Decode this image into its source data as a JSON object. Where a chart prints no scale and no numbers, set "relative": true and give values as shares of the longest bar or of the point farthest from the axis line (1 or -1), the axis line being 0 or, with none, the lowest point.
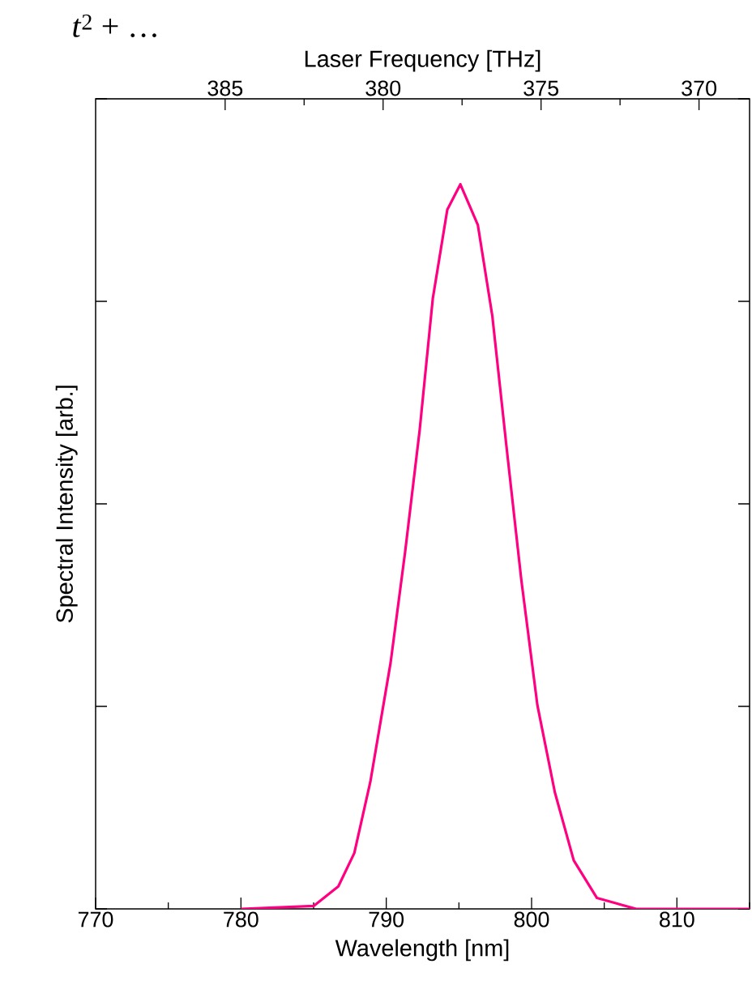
{
  "chart_data": {
    "type": "line",
    "xlabel": "Wavelength [nm]",
    "ylabel": "Spectral Intensity [arb.]",
    "x2label": "Laser Frequency [THz]",
    "relative": true,
    "color": "#ff0080",
    "x": [
      780.0,
      785.0,
      786.7,
      787.8,
      788.9,
      790.3,
      791.3,
      792.3,
      793.2,
      794.2,
      795.1,
      796.3,
      797.3,
      798.3,
      799.3,
      800.4,
      801.6,
      802.9,
      804.5,
      807.2,
      815.0
    ],
    "values": [
      0,
      0.004,
      0.031,
      0.077,
      0.175,
      0.34,
      0.493,
      0.661,
      0.842,
      0.965,
      1,
      0.944,
      0.818,
      0.633,
      0.453,
      0.281,
      0.161,
      0.067,
      0.015,
      0,
      0
    ],
    "xlim": [
      770,
      815
    ],
    "xticks": [
      770,
      780,
      790,
      800,
      810
    ],
    "x2lim": [
      389.1,
      368.4
    ],
    "x2ticks": [
      385,
      380,
      375,
      370
    ],
    "annotations": [
      "*t*$^{2}$ + …"
    ]
  }
}
